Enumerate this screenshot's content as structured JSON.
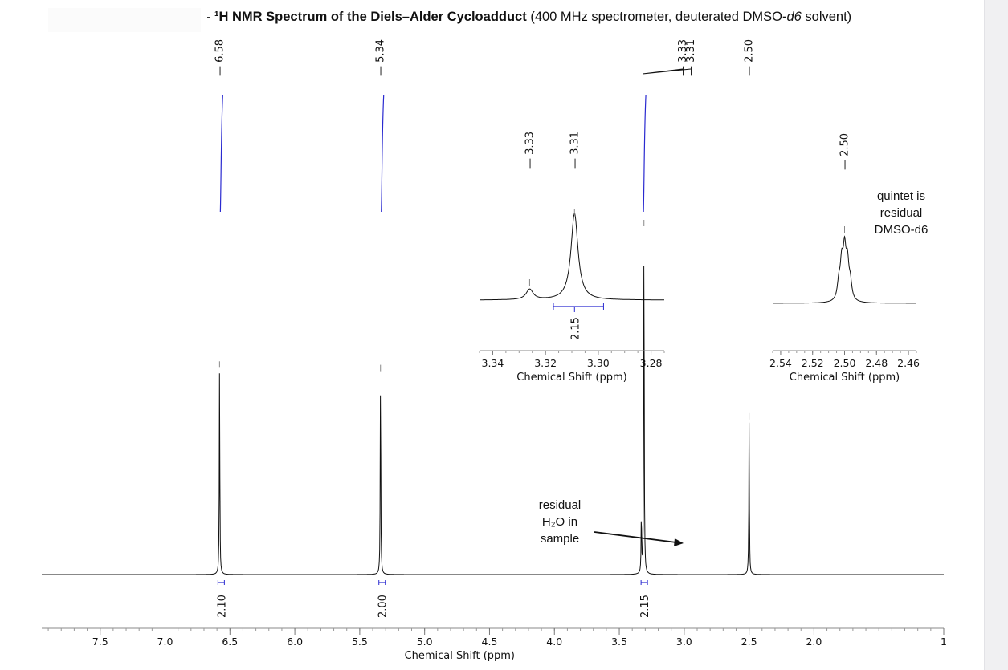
{
  "page": {
    "title_prefix": "¹H NMR Spectrum of the Diels–Alder Cycloadduct",
    "title_suffix": "(400 MHz spectrometer, deuterated DMSO-",
    "title_italic": "d6",
    "title_end": " solvent)"
  },
  "chart_data": [
    {
      "type": "line",
      "name": "main-spectrum",
      "xlabel": "Chemical Shift (ppm)",
      "xlim": [
        7.95,
        1.0
      ],
      "x_reversed": true,
      "xticks": [
        7.5,
        7.0,
        6.5,
        6.0,
        5.5,
        5.0,
        4.5,
        4.0,
        3.5,
        3.0,
        2.5,
        2.0,
        1
      ],
      "xtick_labels": [
        "7.5",
        "7.0",
        "6.5",
        "6.0",
        "5.5",
        "5.0",
        "4.5",
        "4.0",
        "3.5",
        "3.0",
        "2.5",
        "2.0",
        "1"
      ],
      "ylim": [
        0,
        1.0
      ],
      "peaks": [
        {
          "shift": 6.58,
          "height": 0.59,
          "label": "6.58"
        },
        {
          "shift": 5.34,
          "height": 0.58,
          "label": "5.34"
        },
        {
          "shift": 3.31,
          "height": 1.0,
          "label": "3.31"
        },
        {
          "shift": 3.33,
          "height": 0.17,
          "label": "3.33"
        },
        {
          "shift": 2.5,
          "height": 0.44,
          "label": "2.50"
        }
      ],
      "top_peak_labels": [
        "6.58",
        "5.34",
        "3.33",
        "3.31",
        "2.50"
      ],
      "integrals": [
        {
          "shift": 6.58,
          "value": "2.10"
        },
        {
          "shift": 5.34,
          "value": "2.00"
        },
        {
          "shift": 3.32,
          "value": "2.15"
        }
      ],
      "integral_curves": [
        6.58,
        5.34,
        3.32
      ],
      "annotations": [
        {
          "text_lines": [
            "residual",
            "H₂O in",
            "sample"
          ],
          "points_to": 3.33
        }
      ]
    },
    {
      "type": "line",
      "name": "inset-water",
      "xlabel": "Chemical Shift (ppm)",
      "xlim": [
        3.345,
        3.275
      ],
      "xticks": [
        3.34,
        3.32,
        3.3,
        3.28
      ],
      "xtick_labels": [
        "3.34",
        "3.32",
        "3.30",
        "3.28"
      ],
      "peaks": [
        {
          "shift": 3.326,
          "height": 0.12
        },
        {
          "shift": 3.309,
          "height": 1.0
        }
      ],
      "peak_labels": [
        "3.33",
        "3.31"
      ],
      "integral": {
        "from": 3.317,
        "to": 3.298,
        "value": "2.15"
      }
    },
    {
      "type": "line",
      "name": "inset-dmso",
      "xlabel": "Chemical Shift (ppm)",
      "xlim": [
        2.545,
        2.455
      ],
      "xticks": [
        2.54,
        2.52,
        2.5,
        2.48,
        2.46
      ],
      "xtick_labels": [
        "2.54",
        "2.52",
        "2.50",
        "2.48",
        "2.46"
      ],
      "peaks": [
        {
          "shift": 2.5,
          "height": 1.0
        }
      ],
      "peak_labels": [
        "2.50"
      ],
      "note_lines": [
        "quintet is",
        "residual",
        "DMSO-d6"
      ]
    }
  ]
}
